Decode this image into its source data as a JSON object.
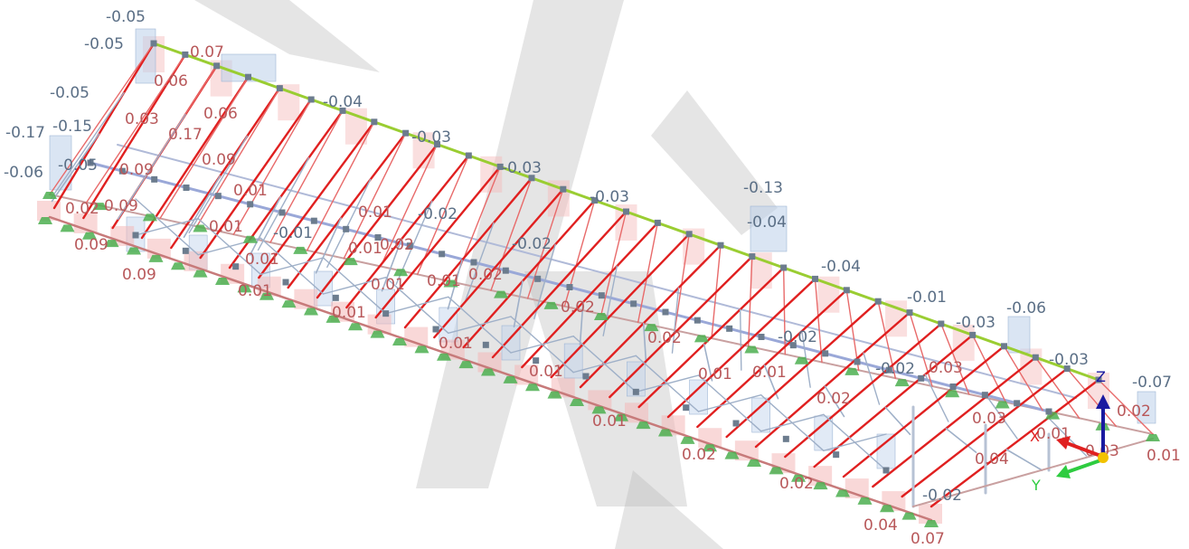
{
  "viewport": {
    "type": "3d-structural-model",
    "view": "isometric",
    "colors": {
      "background": "#ffffff",
      "truss": "#9fb0c8",
      "rafter": "#e02020",
      "ridge": "#9acd32",
      "support": "#4caf50",
      "node": "#6c7c8e",
      "neg_result": "#5b6f86",
      "pos_result": "#b8585a",
      "neg_fill": "#bcd0ea",
      "pos_fill": "#f4b8b8",
      "watermark": "#b0b0b0"
    },
    "neg_labels": [
      "-0.05",
      "-0.05",
      "-0.05",
      "-0.17",
      "-0.15",
      "-0.06",
      "-0.05",
      "-0.04",
      "-0.03",
      "-0.03",
      "-0.03",
      "-0.13",
      "-0.04",
      "-0.04",
      "-0.01",
      "-0.06",
      "-0.03",
      "-0.07",
      "-0.03",
      "-0.02",
      "-0.02",
      "-0.01",
      "-0.02",
      "-0.02",
      "-0.02"
    ],
    "pos_labels": [
      "0.07",
      "0.06",
      "0.03",
      "0.06",
      "0.17",
      "0.09",
      "0.09",
      "0.09",
      "0.02",
      "0.01",
      "0.01",
      "0.01",
      "0.01",
      "0.09",
      "0.09",
      "0.01",
      "0.01",
      "0.01",
      "0.02",
      "0.01",
      "0.01",
      "0.02",
      "0.01",
      "0.02",
      "0.01",
      "0.02",
      "0.01",
      "0.03",
      "0.02",
      "0.03",
      "0.01",
      "0.01",
      "0.03",
      "0.02",
      "0.04",
      "0.07",
      "0.04",
      "0.02",
      "0.02",
      "0.01",
      "0.01"
    ]
  },
  "axes": {
    "x_label": "X",
    "y_label": "Y",
    "z_label": "Z",
    "x_color": "#e02020",
    "y_color": "#2ecc40",
    "z_color": "#1a1aa0",
    "origin_color": "#f2c200"
  }
}
